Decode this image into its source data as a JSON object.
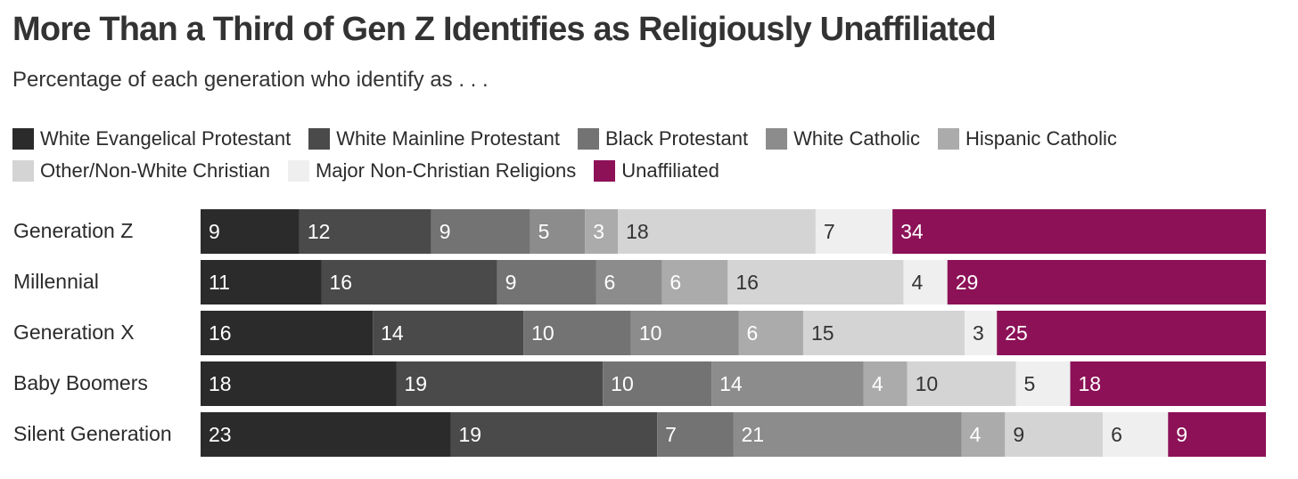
{
  "chart_data": {
    "type": "bar",
    "orientation": "horizontal",
    "stacked": true,
    "title": "More Than a Third of Gen Z Identifies as Religiously Unaffiliated",
    "subtitle": "Percentage of each generation who identify as . . .",
    "legend_placement": "top",
    "grid": false,
    "categories": [
      "Generation Z",
      "Millennial",
      "Generation X",
      "Baby Boomers",
      "Silent Generation"
    ],
    "series": [
      {
        "name": "White Evangelical Protestant",
        "color": "#2b2b2b",
        "text_color": "#ffffff",
        "values": [
          9,
          11,
          16,
          18,
          23
        ]
      },
      {
        "name": "White Mainline Protestant",
        "color": "#4a4a4a",
        "text_color": "#ffffff",
        "values": [
          12,
          16,
          14,
          19,
          19
        ]
      },
      {
        "name": "Black Protestant",
        "color": "#737373",
        "text_color": "#ffffff",
        "values": [
          9,
          9,
          10,
          10,
          7
        ]
      },
      {
        "name": "White Catholic",
        "color": "#8c8c8c",
        "text_color": "#ffffff",
        "values": [
          5,
          6,
          10,
          14,
          21
        ]
      },
      {
        "name": "Hispanic Catholic",
        "color": "#ababab",
        "text_color": "#ffffff",
        "values": [
          3,
          6,
          6,
          4,
          4
        ]
      },
      {
        "name": "Other/Non-White Christian",
        "color": "#d4d4d4",
        "text_color": "#333333",
        "values": [
          18,
          16,
          15,
          10,
          9
        ]
      },
      {
        "name": "Major Non-Christian Religions",
        "color": "#efefef",
        "text_color": "#333333",
        "values": [
          7,
          4,
          3,
          5,
          6
        ]
      },
      {
        "name": "Unaffiliated",
        "color": "#8c1157",
        "text_color": "#ffffff",
        "values": [
          34,
          29,
          25,
          18,
          9
        ]
      }
    ]
  }
}
